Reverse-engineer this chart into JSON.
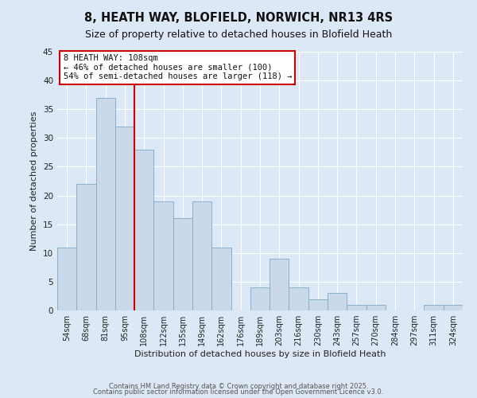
{
  "title": "8, HEATH WAY, BLOFIELD, NORWICH, NR13 4RS",
  "subtitle": "Size of property relative to detached houses in Blofield Heath",
  "xlabel": "Distribution of detached houses by size in Blofield Heath",
  "ylabel": "Number of detached properties",
  "bar_labels": [
    "54sqm",
    "68sqm",
    "81sqm",
    "95sqm",
    "108sqm",
    "122sqm",
    "135sqm",
    "149sqm",
    "162sqm",
    "176sqm",
    "189sqm",
    "203sqm",
    "216sqm",
    "230sqm",
    "243sqm",
    "257sqm",
    "270sqm",
    "284sqm",
    "297sqm",
    "311sqm",
    "324sqm"
  ],
  "bar_values": [
    11,
    22,
    37,
    32,
    28,
    19,
    16,
    19,
    11,
    0,
    4,
    9,
    4,
    2,
    3,
    1,
    1,
    0,
    0,
    1,
    1
  ],
  "bar_color": "#c9d9ea",
  "bar_edge_color": "#8ab0cc",
  "vline_x_idx": 4,
  "vline_color": "#cc0000",
  "ylim": [
    0,
    45
  ],
  "yticks": [
    0,
    5,
    10,
    15,
    20,
    25,
    30,
    35,
    40,
    45
  ],
  "annotation_title": "8 HEATH WAY: 108sqm",
  "annotation_line1": "← 46% of detached houses are smaller (100)",
  "annotation_line2": "54% of semi-detached houses are larger (118) →",
  "annotation_box_color": "#ffffff",
  "annotation_box_edge": "#cc0000",
  "background_color": "#dce8f5",
  "grid_color": "#ffffff",
  "title_fontsize": 10.5,
  "subtitle_fontsize": 9,
  "footer1": "Contains HM Land Registry data © Crown copyright and database right 2025.",
  "footer2": "Contains public sector information licensed under the Open Government Licence v3.0."
}
